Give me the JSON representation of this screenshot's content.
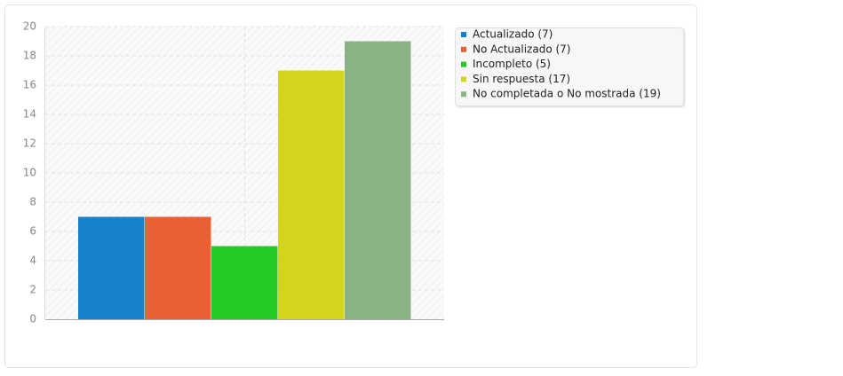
{
  "chart_data": {
    "type": "bar",
    "categories": [
      null
    ],
    "series": [
      {
        "name": "Actualizado (7)",
        "color": "#1582cb",
        "values": [
          7
        ]
      },
      {
        "name": "No Actualizado (7)",
        "color": "#e86033",
        "values": [
          7
        ]
      },
      {
        "name": "Incompleto (5)",
        "color": "#22cc22",
        "values": [
          5
        ]
      },
      {
        "name": "Sin respuesta (17)",
        "color": "#d3d51d",
        "values": [
          17
        ]
      },
      {
        "name": "No completada o No mostrada (19)",
        "color": "#8ab385",
        "values": [
          19
        ]
      }
    ],
    "ylim": [
      0,
      20
    ],
    "yticks": [
      0,
      2,
      4,
      6,
      8,
      10,
      12,
      14,
      16,
      18,
      20
    ],
    "grid": true,
    "legend": "right"
  }
}
